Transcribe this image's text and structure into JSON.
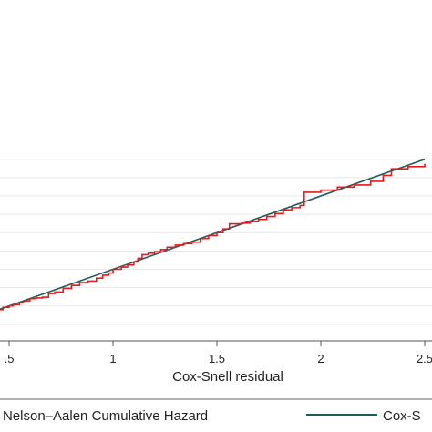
{
  "chart_data": {
    "type": "line",
    "xlabel": "Cox-Snell residual",
    "ylabel": "",
    "xlim": [
      0.42,
      2.5
    ],
    "ylim": [
      0,
      2.55
    ],
    "grid": true,
    "legend_placement": "bottom",
    "x_ticks": [
      {
        "value": 0.5,
        "label": ".5"
      },
      {
        "value": 1,
        "label": "1"
      },
      {
        "value": 1.5,
        "label": "1.5"
      },
      {
        "value": 2,
        "label": "2"
      },
      {
        "value": 2.5,
        "label": "2.5"
      }
    ],
    "y_gridlines": [
      0.25,
      0.5,
      0.75,
      1.0,
      1.25,
      1.5,
      1.75,
      2.0,
      2.25,
      2.5
    ],
    "series": [
      {
        "name": "Nelson–Aalen Cumulative Hazard",
        "color": "#e8191d",
        "style": "step",
        "x": [
          0.42,
          0.45,
          0.47,
          0.5,
          0.52,
          0.55,
          0.57,
          0.6,
          0.63,
          0.66,
          0.69,
          0.72,
          0.76,
          0.8,
          0.84,
          0.88,
          0.92,
          0.95,
          0.98,
          1.0,
          1.04,
          1.07,
          1.1,
          1.12,
          1.14,
          1.17,
          1.2,
          1.23,
          1.26,
          1.3,
          1.34,
          1.38,
          1.42,
          1.46,
          1.5,
          1.53,
          1.56,
          1.62,
          1.66,
          1.7,
          1.74,
          1.78,
          1.82,
          1.86,
          1.9,
          1.92,
          2.0,
          2.08,
          2.16,
          2.24,
          2.3,
          2.34,
          2.42,
          2.5
        ],
        "y": [
          0.42,
          0.45,
          0.48,
          0.5,
          0.52,
          0.55,
          0.57,
          0.6,
          0.61,
          0.62,
          0.67,
          0.69,
          0.74,
          0.78,
          0.82,
          0.84,
          0.88,
          0.92,
          0.95,
          1.0,
          1.03,
          1.06,
          1.1,
          1.15,
          1.2,
          1.22,
          1.24,
          1.27,
          1.3,
          1.33,
          1.35,
          1.37,
          1.42,
          1.46,
          1.5,
          1.55,
          1.62,
          1.63,
          1.65,
          1.68,
          1.72,
          1.76,
          1.81,
          1.84,
          1.87,
          2.05,
          2.08,
          2.12,
          2.15,
          2.2,
          2.28,
          2.37,
          2.4,
          2.44
        ]
      },
      {
        "name": "Cox-Snell residual",
        "color": "#1f5c5c",
        "style": "line",
        "x": [
          0.42,
          2.5
        ],
        "y": [
          0.42,
          2.5
        ]
      }
    ]
  },
  "legend": {
    "items": [
      "Nelson–Aalen Cumulative Hazard",
      "Cox-S"
    ]
  },
  "colors": {
    "grid": "#e4e9ec",
    "axis": "#555555",
    "nelson_aalen": "#e8191d",
    "reference": "#1f5c5c"
  }
}
